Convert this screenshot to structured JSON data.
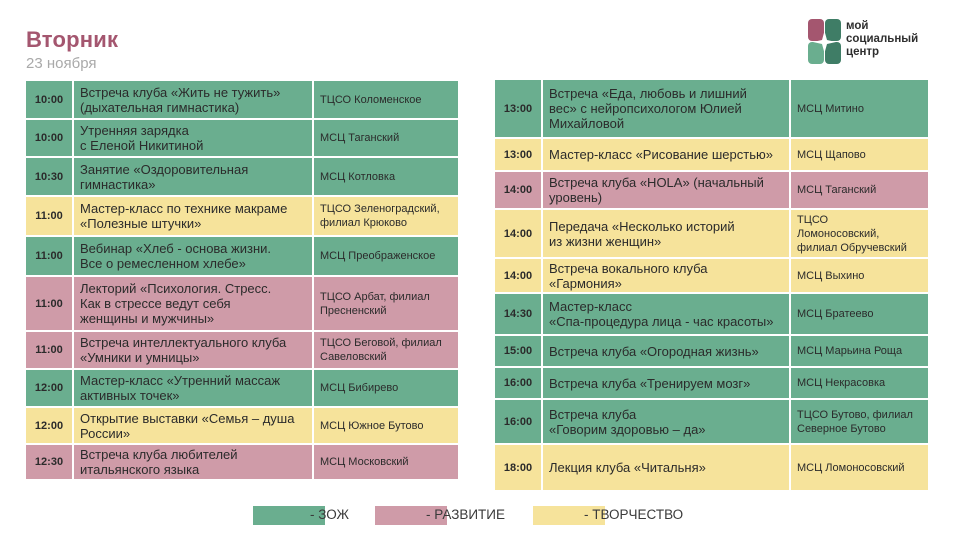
{
  "header": {
    "title": "Вторник",
    "date": "23 ноября"
  },
  "logo": {
    "line1": "мой",
    "line2": "социальный",
    "line3": "центр"
  },
  "colors": {
    "zoj": "#6aae8f",
    "razvitie": "#cf9ba8",
    "tvorchestvo": "#f6e39b",
    "title": "#a4566f"
  },
  "left_rows": [
    {
      "time": "10:00",
      "event": "Встреча клуба «Жить не тужить»\n(дыхательная гимнастика)",
      "place": "ТЦСО Коломенское",
      "cat": "zoj"
    },
    {
      "time": "10:00",
      "event": "Утренняя зарядка\nс Еленой Никитиной",
      "place": "МСЦ Таганский",
      "cat": "zoj"
    },
    {
      "time": "10:30",
      "event": "Занятие «Оздоровительная\nгимнастика»",
      "place": "МСЦ Котловка",
      "cat": "zoj"
    },
    {
      "time": "11:00",
      "event": "Мастер-класс по технике макраме\n«Полезные штучки»",
      "place": "ТЦСО Зеленоградский,\nфилиал Крюково",
      "cat": "tvor"
    },
    {
      "time": "11:00",
      "event": "Вебинар «Хлеб - основа жизни.\nВсе о ремесленном хлебе»",
      "place": "МСЦ Преображенское",
      "cat": "zoj"
    },
    {
      "time": "11:00",
      "event": "Лекторий «Психология. Стресс.\nКак в стрессе ведут себя\nженщины и мужчины»",
      "place": "ТЦСО Арбат, филиал\nПресненский",
      "cat": "razv"
    },
    {
      "time": "11:00",
      "event": "Встреча интеллектуального клуба\n«Умники и умницы»",
      "place": "ТЦСО Беговой, филиал\nСавеловский",
      "cat": "razv"
    },
    {
      "time": "12:00",
      "event": "Мастер-класс «Утренний массаж\nактивных точек»",
      "place": "МСЦ Бибирево",
      "cat": "zoj"
    },
    {
      "time": "12:00",
      "event": "Открытие выставки «Семья – душа\nРоссии»",
      "place": "МСЦ Южное Бутово",
      "cat": "tvor"
    },
    {
      "time": "12:30",
      "event": "Встреча клуба любителей\nитальянского языка",
      "place": "МСЦ Московский",
      "cat": "razv"
    }
  ],
  "right_rows": [
    {
      "time": "13:00",
      "event": "Встреча «Еда, любовь и лишний\nвес» с нейропсихологом Юлией\nМихайловой",
      "place": "МСЦ Митино",
      "cat": "zoj"
    },
    {
      "time": "13:00",
      "event": "Мастер-класс «Рисование шерстью»",
      "place": "МСЦ Щапово",
      "cat": "tvor"
    },
    {
      "time": "14:00",
      "event": "Встреча клуба «HOLA» (начальный\nуровень)",
      "place": "МСЦ Таганский",
      "cat": "razv"
    },
    {
      "time": "14:00",
      "event": "Передача «Несколько историй\nиз жизни женщин»",
      "place": "ТЦСО\nЛомоносовский,\nфилиал Обручевский",
      "cat": "tvor"
    },
    {
      "time": "14:00",
      "event": "Встреча вокального клуба\n«Гармония»",
      "place": "МСЦ Выхино",
      "cat": "tvor"
    },
    {
      "time": "14:30",
      "event": "Мастер-класс\n«Спа-процедура лица - час красоты»",
      "place": "МСЦ Братеево",
      "cat": "zoj"
    },
    {
      "time": "15:00",
      "event": "Встреча клуба «Огородная жизнь»",
      "place": "МСЦ Марьина Роща",
      "cat": "zoj"
    },
    {
      "time": "16:00",
      "event": "Встреча клуба «Тренируем мозг»",
      "place": "МСЦ Некрасовка",
      "cat": "zoj"
    },
    {
      "time": "16:00",
      "event": "Встреча клуба\n«Говорим здоровью – да»",
      "place": "ТЦСО Бутово, филиал\nСеверное Бутово",
      "cat": "zoj"
    },
    {
      "time": "18:00",
      "event": "Лекция клуба «Читальня»",
      "place": "МСЦ Ломоносовский",
      "cat": "tvor"
    }
  ],
  "legend": [
    {
      "label": "- ЗОЖ",
      "cat": "zoj"
    },
    {
      "label": "- РАЗВИТИЕ",
      "cat": "razv"
    },
    {
      "label": "- ТВОРЧЕСТВО",
      "cat": "tvor"
    }
  ]
}
